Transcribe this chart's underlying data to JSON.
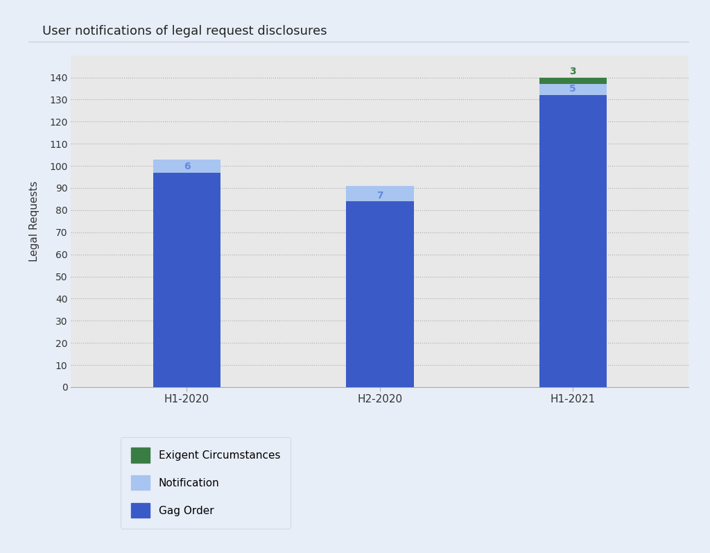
{
  "title": "User notifications of legal request disclosures",
  "categories": [
    "H1-2020",
    "H2-2020",
    "H1-2021"
  ],
  "gag_order": [
    97,
    84,
    132
  ],
  "notification": [
    6,
    7,
    5
  ],
  "exigent": [
    0,
    0,
    3
  ],
  "gag_order_color": "#3a5bc7",
  "notification_color": "#a8c4f0",
  "exigent_color": "#3a7d44",
  "ylabel": "Legal Requests",
  "ylim": [
    0,
    150
  ],
  "yticks": [
    0,
    10,
    20,
    30,
    40,
    50,
    60,
    70,
    80,
    90,
    100,
    110,
    120,
    130,
    140
  ],
  "outer_bg_color": "#e8eef8",
  "plot_bg_color": "#e8e8e8",
  "title_fontsize": 13,
  "bar_width": 0.35,
  "legend_labels": [
    "Exigent Circumstances",
    "Notification",
    "Gag Order"
  ],
  "gag_label_color": "#3a5bc7",
  "notif_label_color": "#6688dd",
  "exigent_label_color": "#3a7d44"
}
